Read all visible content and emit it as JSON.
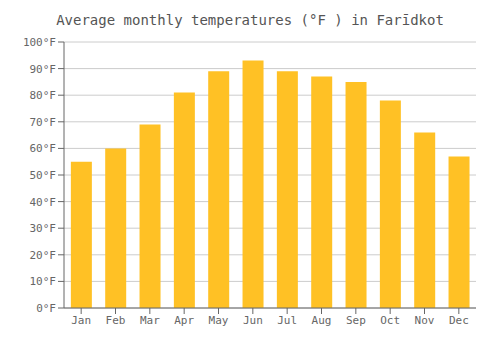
{
  "chart_data": {
    "type": "bar",
    "title": "Average monthly temperatures (°F ) in Farīdkot",
    "categories": [
      "Jan",
      "Feb",
      "Mar",
      "Apr",
      "May",
      "Jun",
      "Jul",
      "Aug",
      "Sep",
      "Oct",
      "Nov",
      "Dec"
    ],
    "values": [
      55,
      60,
      69,
      81,
      89,
      93,
      89,
      87,
      85,
      78,
      66,
      57
    ],
    "color": "#FFC125",
    "ylim": [
      0,
      100
    ],
    "yticks": [
      {
        "value": 0,
        "label": "0°F"
      },
      {
        "value": 10,
        "label": "10°F"
      },
      {
        "value": 20,
        "label": "20°F"
      },
      {
        "value": 30,
        "label": "30°F"
      },
      {
        "value": 40,
        "label": "40°F"
      },
      {
        "value": 50,
        "label": "50°F"
      },
      {
        "value": 60,
        "label": "60°F"
      },
      {
        "value": 70,
        "label": "70°F"
      },
      {
        "value": 80,
        "label": "80°F"
      },
      {
        "value": 90,
        "label": "90°F"
      },
      {
        "value": 100,
        "label": "100°F"
      }
    ],
    "grid": true
  }
}
